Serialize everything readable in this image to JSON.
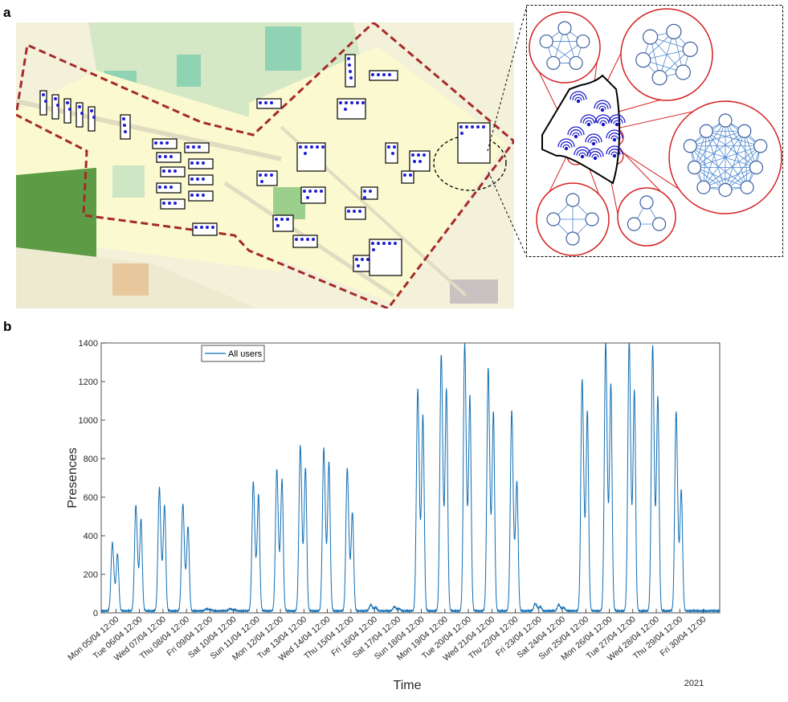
{
  "panels": {
    "a_label": "a",
    "b_label": "b"
  },
  "map": {
    "colors": {
      "base": "#f7f4d6",
      "campus": "#fbf9cf",
      "green": "#cfe6c4",
      "field": "#8fbd78",
      "water": "#8fd2b4",
      "road": "#e5e1c9",
      "boundary": "#a52a2a",
      "ap": "#1f1fd0"
    }
  },
  "inset": {
    "colors": {
      "circle": "#d42020",
      "node": "#3a5fa0",
      "edge": "#4a86d0",
      "ap": "#1515c8"
    },
    "clusters": [
      {
        "nodes": 5,
        "complete": true
      },
      {
        "nodes": 6,
        "complete": true
      },
      {
        "nodes": 10,
        "complete": true
      },
      {
        "nodes": 4,
        "complete": true
      },
      {
        "nodes": 3,
        "complete": true
      }
    ]
  },
  "chart_data": {
    "type": "line",
    "xlabel": "Time",
    "ylabel": "Presences",
    "year_label": "2021",
    "ylim": [
      0,
      1400
    ],
    "yticks": [
      0,
      200,
      400,
      600,
      800,
      1000,
      1200,
      1400
    ],
    "xticks": [
      "Mon 05/04 12:00",
      "Tue 06/04 12:00",
      "Wed 07/04 12:00",
      "Thu 08/04 12:00",
      "Fri 09/04 12:00",
      "Sat 10/04 12:00",
      "Sun 11/04 12:00",
      "Mon 12/04 12:00",
      "Tue 13/04 12:00",
      "Wed 14/04 12:00",
      "Thu 15/04 12:00",
      "Fri 16/04 12:00",
      "Sat 17/04 12:00",
      "Sun 18/04 12:00",
      "Mon 19/04 12:00",
      "Tue 20/04 12:00",
      "Wed 21/04 12:00",
      "Thu 22/04 12:00",
      "Fri 23/04 12:00",
      "Sat 24/04 12:00",
      "Sun 25/04 12:00",
      "Mon 26/04 12:00",
      "Tue 27/04 12:00",
      "Wed 28/04 12:00",
      "Thu 29/04 12:00",
      "Fri 30/04 12:00"
    ],
    "x_range_days": [
      -0.63,
      25.7
    ],
    "legend": "top-left",
    "series": [
      {
        "name": "All users",
        "color": "#0f6db3",
        "daily_peak_am": [
          320,
          490,
          570,
          500,
          20,
          20,
          595,
          650,
          760,
          745,
          665,
          40,
          30,
          1015,
          1175,
          1230,
          1120,
          935,
          45,
          40,
          1060,
          1235,
          1240,
          1220,
          935
        ],
        "daily_peak_pm": [
          270,
          430,
          490,
          390,
          15,
          15,
          540,
          610,
          660,
          690,
          450,
          25,
          20,
          900,
          1020,
          980,
          910,
          580,
          30,
          25,
          920,
          1040,
          1010,
          980,
          540
        ]
      }
    ]
  }
}
